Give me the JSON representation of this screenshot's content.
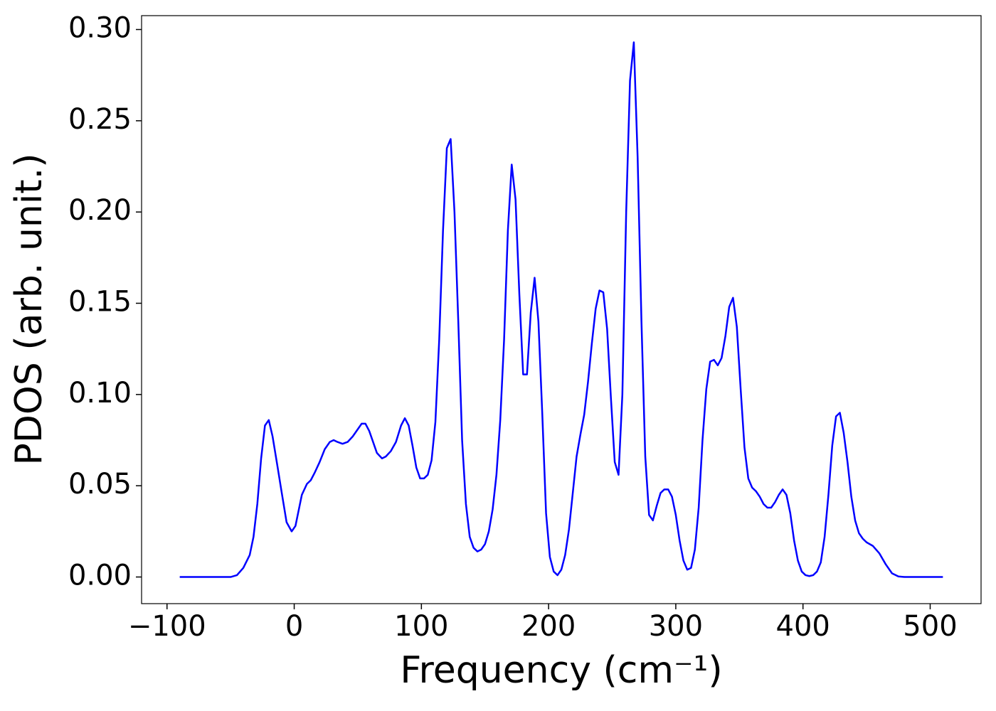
{
  "chart_data": {
    "type": "line",
    "xlabel": "Frequency (cm⁻¹)",
    "ylabel": "PDOS (arb. unit.)",
    "xlim": [
      -120,
      540
    ],
    "ylim": [
      -0.0146,
      0.3076
    ],
    "xticks": [
      {
        "value": -100,
        "label": "−100"
      },
      0,
      100,
      200,
      300,
      400,
      500
    ],
    "yticks": [
      {
        "value": 0,
        "label": "0.00"
      },
      {
        "value": 0.05,
        "label": "0.05"
      },
      {
        "value": 0.1,
        "label": "0.10"
      },
      {
        "value": 0.15,
        "label": "0.15"
      },
      {
        "value": 0.2,
        "label": "0.20"
      },
      {
        "value": 0.25,
        "label": "0.25"
      },
      {
        "value": 0.3,
        "label": "0.30"
      }
    ],
    "series": [
      {
        "color": "#0000ff",
        "x": [
          -90,
          -50,
          -45,
          -40,
          -35,
          -32,
          -29,
          -26,
          -23,
          -20,
          -17,
          -13,
          -10,
          -6,
          -2,
          1,
          6,
          10,
          13,
          16,
          20,
          24,
          28,
          31,
          34,
          38,
          42,
          46,
          50,
          53,
          56,
          59,
          62,
          65,
          69,
          72,
          76,
          80,
          84,
          87,
          90,
          93,
          96,
          99,
          102,
          105,
          108,
          111,
          114,
          117,
          120,
          123,
          126,
          129,
          132,
          135,
          138,
          141,
          144,
          147,
          150,
          153,
          156,
          159,
          162,
          165,
          168,
          171,
          174,
          177,
          180,
          183,
          186,
          189,
          192,
          195,
          198,
          201,
          204,
          207,
          210,
          213,
          216,
          219,
          222,
          225,
          228,
          231,
          234,
          237,
          240,
          243,
          246,
          249,
          252,
          255,
          258,
          261,
          264,
          267,
          270,
          273,
          276,
          279,
          282,
          285,
          288,
          291,
          294,
          297,
          300,
          303,
          306,
          309,
          312,
          315,
          318,
          321,
          324,
          327,
          330,
          333,
          336,
          339,
          342,
          345,
          348,
          351,
          354,
          357,
          360,
          363,
          366,
          369,
          372,
          375,
          378,
          381,
          384,
          387,
          390,
          393,
          396,
          399,
          402,
          405,
          408,
          411,
          414,
          417,
          420,
          423,
          426,
          429,
          432,
          435,
          438,
          441,
          444,
          447,
          450,
          455,
          460,
          465,
          470,
          475,
          480,
          510
        ],
        "values": [
          0,
          0,
          0.001,
          0.005,
          0.012,
          0.022,
          0.04,
          0.065,
          0.083,
          0.086,
          0.077,
          0.06,
          0.047,
          0.03,
          0.025,
          0.028,
          0.045,
          0.051,
          0.053,
          0.057,
          0.063,
          0.07,
          0.074,
          0.075,
          0.074,
          0.073,
          0.074,
          0.077,
          0.081,
          0.084,
          0.084,
          0.08,
          0.074,
          0.068,
          0.065,
          0.066,
          0.069,
          0.074,
          0.083,
          0.087,
          0.083,
          0.072,
          0.06,
          0.054,
          0.054,
          0.056,
          0.064,
          0.085,
          0.13,
          0.19,
          0.235,
          0.24,
          0.2,
          0.14,
          0.075,
          0.04,
          0.022,
          0.016,
          0.014,
          0.015,
          0.018,
          0.025,
          0.037,
          0.056,
          0.086,
          0.13,
          0.19,
          0.226,
          0.207,
          0.155,
          0.111,
          0.111,
          0.145,
          0.164,
          0.14,
          0.09,
          0.035,
          0.011,
          0.003,
          0.001,
          0.004,
          0.012,
          0.026,
          0.046,
          0.066,
          0.078,
          0.089,
          0.107,
          0.128,
          0.147,
          0.157,
          0.156,
          0.136,
          0.098,
          0.063,
          0.056,
          0.1,
          0.2,
          0.272,
          0.293,
          0.23,
          0.14,
          0.066,
          0.034,
          0.031,
          0.039,
          0.046,
          0.048,
          0.048,
          0.044,
          0.034,
          0.02,
          0.009,
          0.004,
          0.005,
          0.015,
          0.038,
          0.075,
          0.103,
          0.118,
          0.119,
          0.116,
          0.12,
          0.132,
          0.148,
          0.153,
          0.137,
          0.103,
          0.071,
          0.054,
          0.049,
          0.047,
          0.044,
          0.04,
          0.038,
          0.038,
          0.041,
          0.045,
          0.048,
          0.045,
          0.035,
          0.02,
          0.009,
          0.003,
          0.001,
          0.0005,
          0.001,
          0.003,
          0.008,
          0.022,
          0.045,
          0.072,
          0.088,
          0.09,
          0.079,
          0.063,
          0.044,
          0.031,
          0.024,
          0.021,
          0.019,
          0.017,
          0.013,
          0.007,
          0.002,
          0.0003,
          0,
          0
        ]
      }
    ]
  }
}
